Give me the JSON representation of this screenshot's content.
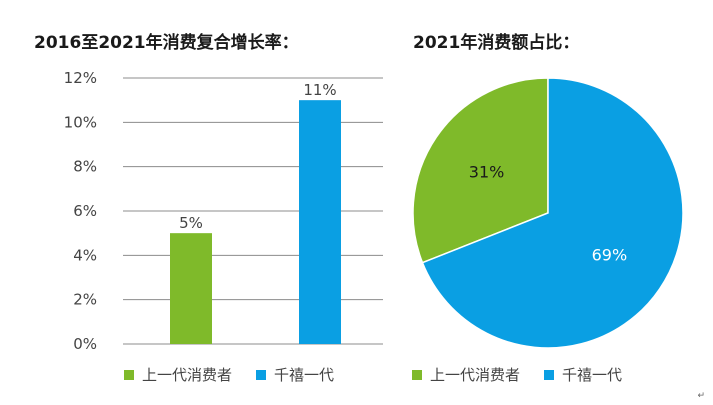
{
  "colors": {
    "green": "#7fba2a",
    "blue": "#0a9fe3",
    "axis": "#8c8c8c",
    "text": "#444444"
  },
  "chart_data": [
    {
      "type": "bar",
      "title": "2016至2021年消费复合增长率：",
      "categories": [
        "上一代消费者",
        "千禧一代"
      ],
      "values": [
        5,
        11
      ],
      "data_labels": [
        "5%",
        "11%"
      ],
      "ylim": [
        0,
        12
      ],
      "yticks": [
        0,
        2,
        4,
        6,
        8,
        10,
        12
      ],
      "ytick_labels": [
        "0%",
        "2%",
        "4%",
        "6%",
        "8%",
        "10%",
        "12%"
      ],
      "grid": true,
      "legend_position": "bottom",
      "legend": [
        "上一代消费者",
        "千禧一代"
      ]
    },
    {
      "type": "pie",
      "title": "2021年消费额占比：",
      "categories": [
        "上一代消费者",
        "千禧一代"
      ],
      "values": [
        31,
        69
      ],
      "data_labels": [
        "31%",
        "69%"
      ],
      "legend_position": "bottom",
      "legend": [
        "上一代消费者",
        "千禧一代"
      ]
    }
  ],
  "footer_mark": "↵"
}
